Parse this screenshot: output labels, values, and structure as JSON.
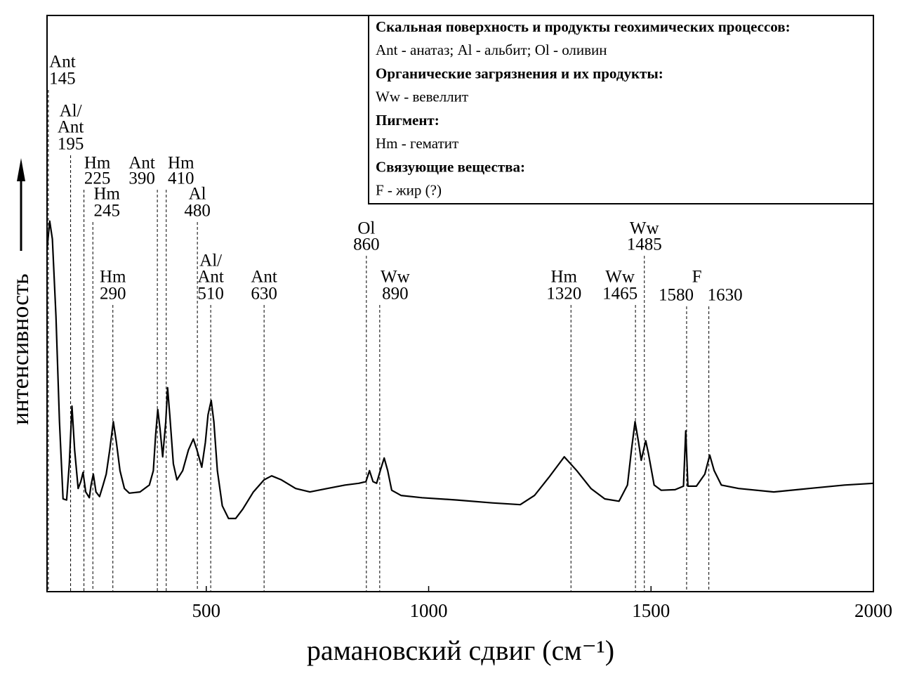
{
  "chart_data": {
    "type": "line",
    "xlabel": "рамановский сдвиг (см⁻¹)",
    "ylabel": "интенсивность",
    "xlim": [
      142,
      2000
    ],
    "ylim": [
      0,
      100
    ],
    "xticks": [
      500,
      1000,
      1500,
      2000
    ],
    "color": "#000000",
    "x": [
      142,
      148,
      154,
      162,
      170,
      178,
      186,
      192,
      198,
      204,
      212,
      218,
      223,
      229,
      237,
      241,
      246,
      252,
      260,
      268,
      275,
      283,
      291,
      298,
      306,
      316,
      327,
      351,
      372,
      381,
      386,
      391,
      396,
      402,
      409,
      413,
      418,
      426,
      434,
      447,
      460,
      471,
      479,
      490,
      498,
      504,
      511,
      517,
      525,
      536,
      550,
      566,
      582,
      606,
      630,
      647,
      669,
      701,
      733,
      772,
      812,
      843,
      859,
      867,
      875,
      883,
      892,
      900,
      908,
      917,
      938,
      985,
      1064,
      1143,
      1206,
      1238,
      1270,
      1305,
      1333,
      1365,
      1396,
      1428,
      1447,
      1456,
      1464,
      1472,
      1478,
      1488,
      1494,
      1507,
      1523,
      1554,
      1573,
      1578,
      1583,
      1602,
      1621,
      1632,
      1642,
      1658,
      1697,
      1776,
      1855,
      1935,
      2000
    ],
    "values": [
      59.4,
      64.3,
      61.2,
      47.8,
      29.5,
      16.1,
      15.9,
      22.2,
      32.2,
      24.6,
      17.9,
      19.1,
      20.7,
      17.3,
      16.3,
      18.5,
      20.4,
      17.3,
      16.5,
      18.5,
      20.4,
      24.6,
      29.5,
      25.9,
      21.0,
      17.9,
      17.1,
      17.3,
      18.5,
      21.0,
      27.1,
      31.6,
      28.3,
      23.4,
      29.5,
      35.4,
      30.7,
      22.2,
      19.4,
      21.0,
      24.6,
      26.5,
      24.6,
      21.6,
      25.9,
      30.7,
      33.2,
      29.5,
      21.0,
      14.9,
      12.7,
      12.7,
      14.3,
      17.3,
      19.4,
      20.1,
      19.4,
      17.9,
      17.3,
      17.9,
      18.5,
      18.8,
      19.1,
      21.0,
      19.1,
      18.8,
      21.2,
      23.2,
      21.0,
      17.6,
      16.7,
      16.3,
      15.9,
      15.4,
      15.1,
      16.7,
      19.8,
      23.4,
      21.0,
      17.9,
      16.1,
      15.7,
      18.5,
      24.6,
      29.5,
      25.9,
      22.8,
      26.2,
      24.0,
      18.5,
      17.6,
      17.7,
      18.3,
      27.9,
      18.3,
      18.3,
      20.4,
      23.7,
      21.0,
      18.5,
      17.9,
      17.3,
      17.9,
      18.5,
      18.8
    ],
    "peaks": [
      {
        "label": [
          "Ant"
        ],
        "value": 145
      },
      {
        "label": [
          "Al/",
          "Ant"
        ],
        "value": 195
      },
      {
        "label": [
          "Hm"
        ],
        "value": 225
      },
      {
        "label": [
          "Hm"
        ],
        "value": 245
      },
      {
        "label": [
          "Hm"
        ],
        "value": 290
      },
      {
        "label": [
          "Ant"
        ],
        "value": 390
      },
      {
        "label": [
          "Hm"
        ],
        "value": 410
      },
      {
        "label": [
          "Al"
        ],
        "value": 480
      },
      {
        "label": [
          "Al/",
          "Ant"
        ],
        "value": 510
      },
      {
        "label": [
          "Ant"
        ],
        "value": 630
      },
      {
        "label": [
          "Ol"
        ],
        "value": 860
      },
      {
        "label": [
          "Ww"
        ],
        "value": 890
      },
      {
        "label": [
          "Hm"
        ],
        "value": 1320
      },
      {
        "label": [
          "Ww"
        ],
        "value": 1465
      },
      {
        "label": [
          "Ww"
        ],
        "value": 1485
      },
      {
        "label": [],
        "value": 1580
      },
      {
        "label": [
          "F"
        ],
        "value": 1630
      }
    ],
    "legend": [
      {
        "title": "Скальная поверхность и продукты геохимических процессов:",
        "text": "Ant - анатаз; Al - альбит; Ol - оливин"
      },
      {
        "title": "Органические загрязнения и их продукты:",
        "text": "Ww - вевеллит"
      },
      {
        "title": "Пигмент:",
        "text": "Hm - гематит"
      },
      {
        "title": "Связующие вещества:",
        "text": "F - жир (?)"
      }
    ]
  }
}
